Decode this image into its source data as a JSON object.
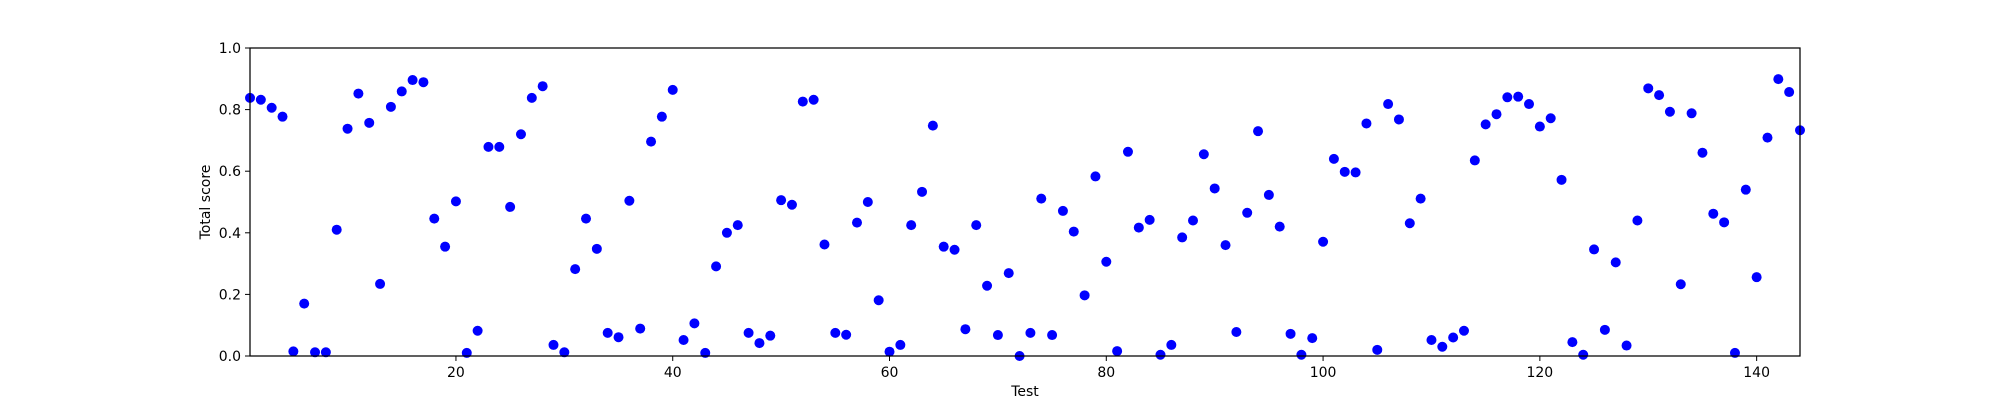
{
  "chart_data": {
    "type": "scatter",
    "xlabel": "Test",
    "ylabel": "Total score",
    "xlim": [
      1,
      144
    ],
    "ylim": [
      0.0,
      1.0
    ],
    "grid": false,
    "marker_color": "#0000ff",
    "xticks": [
      20,
      40,
      60,
      80,
      100,
      120,
      140
    ],
    "yticks": [
      "0.0",
      "0.2",
      "0.4",
      "0.6",
      "0.8",
      "1.0"
    ],
    "x": [
      1,
      2,
      3,
      4,
      5,
      6,
      7,
      8,
      9,
      10,
      11,
      12,
      13,
      14,
      15,
      16,
      17,
      18,
      19,
      20,
      21,
      22,
      23,
      24,
      25,
      26,
      27,
      28,
      29,
      30,
      31,
      32,
      33,
      34,
      35,
      36,
      37,
      38,
      39,
      40,
      41,
      42,
      43,
      44,
      45,
      46,
      47,
      48,
      49,
      50,
      51,
      52,
      53,
      54,
      55,
      56,
      57,
      58,
      59,
      60,
      61,
      62,
      63,
      64,
      65,
      66,
      67,
      68,
      69,
      70,
      71,
      72,
      73,
      74,
      75,
      76,
      77,
      78,
      79,
      80,
      81,
      82,
      83,
      84,
      85,
      86,
      87,
      88,
      89,
      90,
      91,
      92,
      93,
      94,
      95,
      96,
      97,
      98,
      99,
      100,
      101,
      102,
      103,
      104,
      105,
      106,
      107,
      108,
      109,
      110,
      111,
      112,
      113,
      114,
      115,
      116,
      117,
      118,
      119,
      120,
      121,
      122,
      123,
      124,
      125,
      126,
      127,
      128,
      129,
      130,
      131,
      132,
      133,
      134,
      135,
      136,
      137,
      138,
      139,
      140,
      141,
      142,
      143,
      144
    ],
    "y": [
      0.838,
      0.832,
      0.806,
      0.777,
      0.015,
      0.17,
      0.012,
      0.012,
      0.41,
      0.738,
      0.852,
      0.757,
      0.234,
      0.809,
      0.859,
      0.896,
      0.889,
      0.446,
      0.355,
      0.502,
      0.01,
      0.082,
      0.679,
      0.679,
      0.484,
      0.72,
      0.838,
      0.876,
      0.036,
      0.012,
      0.282,
      0.446,
      0.348,
      0.075,
      0.061,
      0.504,
      0.089,
      0.696,
      0.777,
      0.864,
      0.052,
      0.106,
      0.01,
      0.291,
      0.4,
      0.425,
      0.075,
      0.042,
      0.066,
      0.506,
      0.491,
      0.826,
      0.832,
      0.362,
      0.075,
      0.069,
      0.433,
      0.5,
      0.181,
      0.014,
      0.036,
      0.425,
      0.533,
      0.748,
      0.355,
      0.345,
      0.087,
      0.425,
      0.228,
      0.068,
      0.269,
      0.0,
      0.075,
      0.511,
      0.068,
      0.471,
      0.404,
      0.197,
      0.583,
      0.306,
      0.016,
      0.663,
      0.417,
      0.442,
      0.004,
      0.036,
      0.385,
      0.44,
      0.655,
      0.544,
      0.36,
      0.078,
      0.465,
      0.73,
      0.523,
      0.42,
      0.072,
      0.004,
      0.058,
      0.371,
      0.64,
      0.598,
      0.596,
      0.755,
      0.02,
      0.818,
      0.768,
      0.431,
      0.511,
      0.052,
      0.03,
      0.06,
      0.082,
      0.635,
      0.752,
      0.785,
      0.84,
      0.842,
      0.818,
      0.745,
      0.772,
      0.572,
      0.045,
      0.004,
      0.346,
      0.085,
      0.304,
      0.034,
      0.44,
      0.869,
      0.847,
      0.793,
      0.233,
      0.788,
      0.66,
      0.462,
      0.434,
      0.01,
      0.54,
      0.256,
      0.709,
      0.899,
      0.857,
      0.733
    ]
  }
}
